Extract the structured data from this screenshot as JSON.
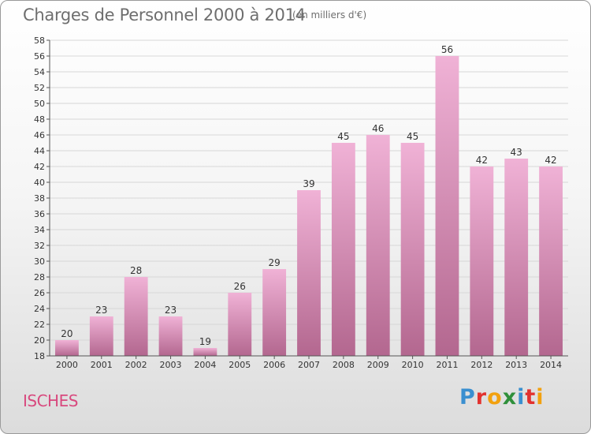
{
  "header": {
    "title": "Charges de Personnel 2000 à 2014",
    "subtitle": "(en milliers d'€)"
  },
  "footer": {
    "commune": "ISCHES",
    "logo_letters": [
      "P",
      "r",
      "o",
      "x",
      "i",
      "t",
      "i"
    ]
  },
  "colors": {
    "bar_top": "#f0b2d6",
    "bar_bottom": "#b3678f",
    "grid": "#d7d7d7"
  },
  "chart_data": {
    "type": "bar",
    "title": "Charges de Personnel 2000 à 2014",
    "subtitle": "(en milliers d'€)",
    "categories": [
      "2000",
      "2001",
      "2002",
      "2003",
      "2004",
      "2005",
      "2006",
      "2007",
      "2008",
      "2009",
      "2010",
      "2011",
      "2012",
      "2013",
      "2014"
    ],
    "values": [
      20,
      23,
      28,
      23,
      19,
      26,
      29,
      39,
      45,
      46,
      45,
      56,
      42,
      43,
      42
    ],
    "ylim": [
      18,
      58
    ],
    "ytick_step": 2,
    "grid": true,
    "data_labels": true
  }
}
